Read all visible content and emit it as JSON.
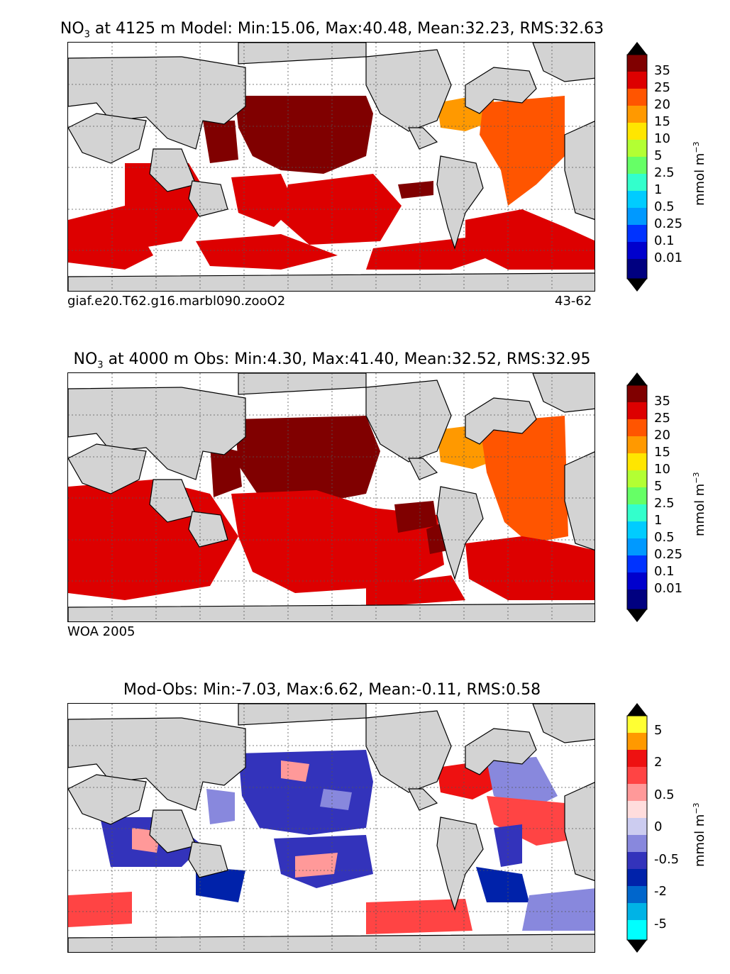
{
  "panels": [
    {
      "title_prefix": "NO",
      "title_sub": "3",
      "title_rest": " at 4125 m Model: Min:15.06, Max:40.48, Mean:32.23, RMS:32.63",
      "caption_left": "giaf.e20.T62.g16.marbl090.zooO2",
      "caption_right": "43-62",
      "colorbar_ticks": [
        "35",
        "25",
        "20",
        "15",
        "10",
        "5",
        "2.5",
        "1",
        "0.5",
        "0.25",
        "0.1",
        "0.01"
      ],
      "units": "mmol m",
      "units_sup": "−3"
    },
    {
      "title_prefix": "NO",
      "title_sub": "3",
      "title_rest": " at 4000 m Obs: Min:4.30, Max:41.40, Mean:32.52, RMS:32.95",
      "caption_left": "WOA 2005",
      "colorbar_ticks": [
        "35",
        "25",
        "20",
        "15",
        "10",
        "5",
        "2.5",
        "1",
        "0.5",
        "0.25",
        "0.1",
        "0.01"
      ],
      "units": "mmol m",
      "units_sup": "−3"
    },
    {
      "title_full": "Mod-Obs: Min:-7.03, Max:6.62, Mean:-0.11, RMS:0.58",
      "colorbar_ticks": [
        "5",
        "2",
        "0.5",
        "0",
        "-0.5",
        "-2",
        "-5"
      ],
      "units": "mmol m",
      "units_sup": "−3"
    }
  ],
  "colors": {
    "land": "#d3d3d3",
    "abs_scale": [
      "#000080",
      "#0000cd",
      "#0033ff",
      "#0066ff",
      "#0099ff",
      "#00ccff",
      "#33ffcc",
      "#66ff66",
      "#b3ff33",
      "#ffe600",
      "#ff9900",
      "#ff5500",
      "#dd0000",
      "#800000"
    ],
    "diff_scale": [
      "#00ffff",
      "#00b3e6",
      "#0066cc",
      "#0022aa",
      "#3333bb",
      "#8888dd",
      "#ccccf0",
      "#ffdddd",
      "#ff9999",
      "#ff4444",
      "#ee1111",
      "#ff9900",
      "#ffff33"
    ],
    "ext_low_abs": "#000000",
    "ext_high_abs": "#000000"
  }
}
